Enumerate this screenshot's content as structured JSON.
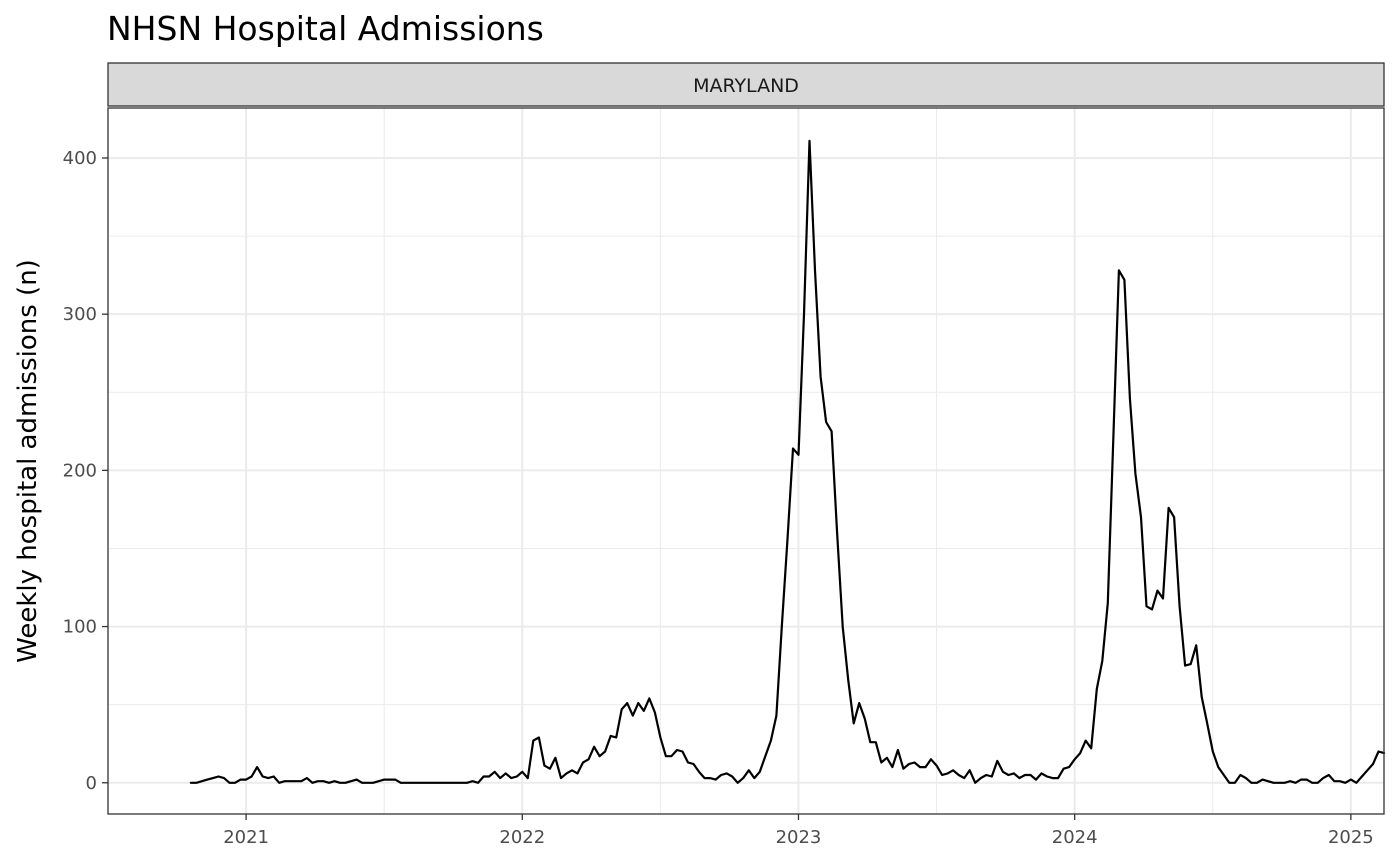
{
  "chart_data": {
    "type": "line",
    "title": "NHSN Hospital Admissions",
    "facet_label": "MARYLAND",
    "xlabel": "",
    "ylabel": "Weekly hospital admissions (n)",
    "xlim": [
      2020.5,
      2025.12
    ],
    "ylim": [
      -20,
      432
    ],
    "x_ticks": [
      2021,
      2022,
      2023,
      2024,
      2025
    ],
    "x_tick_labels": [
      "2021",
      "2022",
      "2023",
      "2024",
      "2025"
    ],
    "y_ticks": [
      0,
      100,
      200,
      300,
      400
    ],
    "y_tick_labels": [
      "0",
      "100",
      "200",
      "300",
      "400"
    ],
    "grid": true,
    "series": [
      {
        "name": "MARYLAND",
        "color": "#000000",
        "points": [
          [
            2020.8,
            0
          ],
          [
            2020.82,
            0
          ],
          [
            2020.84,
            1
          ],
          [
            2020.86,
            2
          ],
          [
            2020.88,
            3
          ],
          [
            2020.9,
            4
          ],
          [
            2020.92,
            3
          ],
          [
            2020.94,
            0
          ],
          [
            2020.96,
            0
          ],
          [
            2020.98,
            2
          ],
          [
            2021.0,
            2
          ],
          [
            2021.02,
            4
          ],
          [
            2021.04,
            10
          ],
          [
            2021.06,
            4
          ],
          [
            2021.08,
            3
          ],
          [
            2021.1,
            4
          ],
          [
            2021.12,
            0
          ],
          [
            2021.14,
            1
          ],
          [
            2021.16,
            1
          ],
          [
            2021.18,
            1
          ],
          [
            2021.2,
            1
          ],
          [
            2021.22,
            3
          ],
          [
            2021.24,
            0
          ],
          [
            2021.26,
            1
          ],
          [
            2021.28,
            1
          ],
          [
            2021.3,
            0
          ],
          [
            2021.32,
            1
          ],
          [
            2021.34,
            0
          ],
          [
            2021.36,
            0
          ],
          [
            2021.38,
            1
          ],
          [
            2021.4,
            2
          ],
          [
            2021.42,
            0
          ],
          [
            2021.44,
            0
          ],
          [
            2021.46,
            0
          ],
          [
            2021.48,
            1
          ],
          [
            2021.5,
            2
          ],
          [
            2021.52,
            2
          ],
          [
            2021.54,
            2
          ],
          [
            2021.56,
            0
          ],
          [
            2021.58,
            0
          ],
          [
            2021.6,
            0
          ],
          [
            2021.62,
            0
          ],
          [
            2021.64,
            0
          ],
          [
            2021.66,
            0
          ],
          [
            2021.68,
            0
          ],
          [
            2021.7,
            0
          ],
          [
            2021.72,
            0
          ],
          [
            2021.74,
            0
          ],
          [
            2021.76,
            0
          ],
          [
            2021.78,
            0
          ],
          [
            2021.8,
            0
          ],
          [
            2021.82,
            1
          ],
          [
            2021.84,
            0
          ],
          [
            2021.86,
            4
          ],
          [
            2021.88,
            4
          ],
          [
            2021.9,
            7
          ],
          [
            2021.92,
            3
          ],
          [
            2021.94,
            6
          ],
          [
            2021.96,
            3
          ],
          [
            2021.98,
            4
          ],
          [
            2022.0,
            7
          ],
          [
            2022.02,
            3
          ],
          [
            2022.04,
            27
          ],
          [
            2022.06,
            29
          ],
          [
            2022.08,
            11
          ],
          [
            2022.1,
            9
          ],
          [
            2022.12,
            16
          ],
          [
            2022.14,
            3
          ],
          [
            2022.16,
            6
          ],
          [
            2022.18,
            8
          ],
          [
            2022.2,
            6
          ],
          [
            2022.22,
            13
          ],
          [
            2022.24,
            15
          ],
          [
            2022.26,
            23
          ],
          [
            2022.28,
            17
          ],
          [
            2022.3,
            20
          ],
          [
            2022.32,
            30
          ],
          [
            2022.34,
            29
          ],
          [
            2022.36,
            47
          ],
          [
            2022.38,
            51
          ],
          [
            2022.4,
            43
          ],
          [
            2022.42,
            51
          ],
          [
            2022.44,
            46
          ],
          [
            2022.46,
            54
          ],
          [
            2022.48,
            45
          ],
          [
            2022.5,
            29
          ],
          [
            2022.52,
            17
          ],
          [
            2022.54,
            17
          ],
          [
            2022.56,
            21
          ],
          [
            2022.58,
            20
          ],
          [
            2022.6,
            13
          ],
          [
            2022.62,
            12
          ],
          [
            2022.64,
            7
          ],
          [
            2022.66,
            3
          ],
          [
            2022.68,
            3
          ],
          [
            2022.7,
            2
          ],
          [
            2022.72,
            5
          ],
          [
            2022.74,
            6
          ],
          [
            2022.76,
            4
          ],
          [
            2022.78,
            0
          ],
          [
            2022.8,
            3
          ],
          [
            2022.82,
            8
          ],
          [
            2022.84,
            3
          ],
          [
            2022.86,
            7
          ],
          [
            2022.88,
            17
          ],
          [
            2022.9,
            27
          ],
          [
            2022.92,
            43
          ],
          [
            2022.94,
            101
          ],
          [
            2022.96,
            155
          ],
          [
            2022.98,
            214
          ],
          [
            2023.0,
            210
          ],
          [
            2023.02,
            300
          ],
          [
            2023.04,
            411
          ],
          [
            2023.06,
            328
          ],
          [
            2023.08,
            260
          ],
          [
            2023.1,
            231
          ],
          [
            2023.12,
            225
          ],
          [
            2023.14,
            160
          ],
          [
            2023.16,
            100
          ],
          [
            2023.18,
            66
          ],
          [
            2023.2,
            38
          ],
          [
            2023.22,
            51
          ],
          [
            2023.24,
            41
          ],
          [
            2023.26,
            26
          ],
          [
            2023.28,
            26
          ],
          [
            2023.3,
            13
          ],
          [
            2023.32,
            16
          ],
          [
            2023.34,
            10
          ],
          [
            2023.36,
            21
          ],
          [
            2023.38,
            9
          ],
          [
            2023.4,
            12
          ],
          [
            2023.42,
            13
          ],
          [
            2023.44,
            10
          ],
          [
            2023.46,
            10
          ],
          [
            2023.48,
            15
          ],
          [
            2023.5,
            11
          ],
          [
            2023.52,
            5
          ],
          [
            2023.54,
            6
          ],
          [
            2023.56,
            8
          ],
          [
            2023.58,
            5
          ],
          [
            2023.6,
            3
          ],
          [
            2023.62,
            8
          ],
          [
            2023.64,
            0
          ],
          [
            2023.66,
            3
          ],
          [
            2023.68,
            5
          ],
          [
            2023.7,
            4
          ],
          [
            2023.72,
            14
          ],
          [
            2023.74,
            7
          ],
          [
            2023.76,
            5
          ],
          [
            2023.78,
            6
          ],
          [
            2023.8,
            3
          ],
          [
            2023.82,
            5
          ],
          [
            2023.84,
            5
          ],
          [
            2023.86,
            2
          ],
          [
            2023.88,
            6
          ],
          [
            2023.9,
            4
          ],
          [
            2023.92,
            3
          ],
          [
            2023.94,
            3
          ],
          [
            2023.96,
            9
          ],
          [
            2023.98,
            10
          ],
          [
            2024.0,
            15
          ],
          [
            2024.02,
            19
          ],
          [
            2024.04,
            27
          ],
          [
            2024.06,
            22
          ],
          [
            2024.08,
            60
          ],
          [
            2024.1,
            78
          ],
          [
            2024.12,
            115
          ],
          [
            2024.14,
            220
          ],
          [
            2024.16,
            328
          ],
          [
            2024.18,
            322
          ],
          [
            2024.2,
            246
          ],
          [
            2024.22,
            198
          ],
          [
            2024.24,
            170
          ],
          [
            2024.26,
            113
          ],
          [
            2024.28,
            111
          ],
          [
            2024.3,
            123
          ],
          [
            2024.32,
            118
          ],
          [
            2024.34,
            176
          ],
          [
            2024.36,
            170
          ],
          [
            2024.38,
            113
          ],
          [
            2024.4,
            75
          ],
          [
            2024.42,
            76
          ],
          [
            2024.44,
            88
          ],
          [
            2024.46,
            55
          ],
          [
            2024.48,
            38
          ],
          [
            2024.5,
            20
          ],
          [
            2024.52,
            10
          ],
          [
            2024.54,
            5
          ],
          [
            2024.56,
            0
          ],
          [
            2024.58,
            0
          ],
          [
            2024.6,
            5
          ],
          [
            2024.62,
            3
          ],
          [
            2024.64,
            0
          ],
          [
            2024.66,
            0
          ],
          [
            2024.68,
            2
          ],
          [
            2024.7,
            1
          ],
          [
            2024.72,
            0
          ],
          [
            2024.74,
            0
          ],
          [
            2024.76,
            0
          ],
          [
            2024.78,
            1
          ],
          [
            2024.8,
            0
          ],
          [
            2024.82,
            2
          ],
          [
            2024.84,
            2
          ],
          [
            2024.86,
            0
          ],
          [
            2024.88,
            0
          ],
          [
            2024.9,
            3
          ],
          [
            2024.92,
            5
          ],
          [
            2024.94,
            1
          ],
          [
            2024.96,
            1
          ],
          [
            2024.98,
            0
          ],
          [
            2025.0,
            2
          ],
          [
            2025.02,
            0
          ],
          [
            2025.04,
            4
          ],
          [
            2025.06,
            8
          ],
          [
            2025.08,
            12
          ],
          [
            2025.1,
            20
          ],
          [
            2025.12,
            19
          ]
        ]
      }
    ]
  }
}
